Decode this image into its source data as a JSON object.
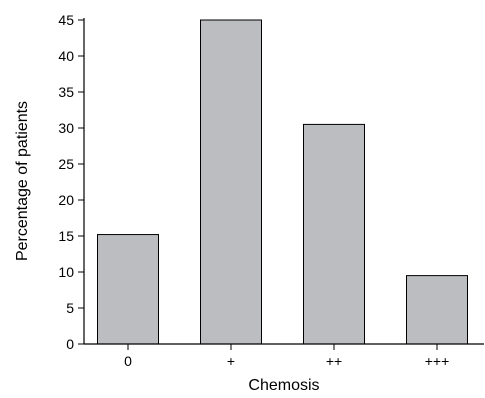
{
  "colors": {
    "bar_fill": "#bcbdc0",
    "bar_stroke": "#000000",
    "axis": "#000000",
    "background": "#ffffff"
  },
  "chart_data": {
    "type": "bar",
    "title": "",
    "xlabel": "Chemosis",
    "ylabel": "Percentage of patients",
    "categories": [
      "0",
      "+",
      "++",
      "+++"
    ],
    "values": [
      15.2,
      45,
      30.5,
      9.5
    ],
    "ylim": [
      0,
      45
    ],
    "yticks": [
      0,
      5,
      10,
      15,
      20,
      25,
      30,
      35,
      40,
      45
    ],
    "ytick_labels": [
      "0",
      "5",
      "10",
      "15",
      "20",
      "25",
      "30",
      "35",
      "40",
      "45"
    ],
    "grid": false,
    "legend": "none"
  }
}
